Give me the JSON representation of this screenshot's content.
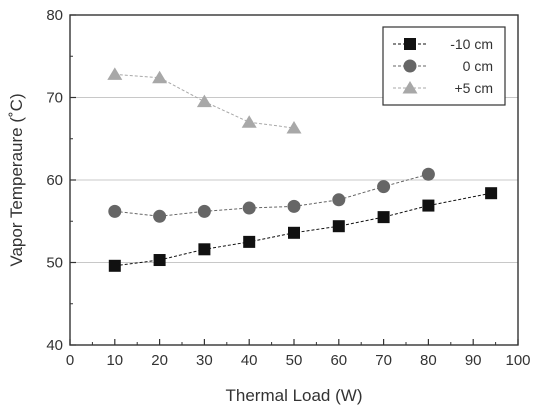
{
  "chart_data": {
    "type": "line",
    "xlabel": "Thermal Load (W)",
    "ylabel": "Vapor Temperaure (˚C)",
    "xlim": [
      0,
      100
    ],
    "ylim": [
      40,
      80
    ],
    "x_ticks": [
      0,
      10,
      20,
      30,
      40,
      50,
      60,
      70,
      80,
      90,
      100
    ],
    "y_ticks": [
      40,
      50,
      60,
      70,
      80
    ],
    "grid": "horizontal",
    "legend_position": "top-right",
    "series": [
      {
        "name": "-10 cm",
        "marker": "square",
        "color": "#111111",
        "points": [
          [
            10,
            49.6
          ],
          [
            20,
            50.3
          ],
          [
            30,
            51.6
          ],
          [
            40,
            52.5
          ],
          [
            50,
            53.6
          ],
          [
            60,
            54.4
          ],
          [
            70,
            55.5
          ],
          [
            80,
            56.9
          ],
          [
            94,
            58.4
          ]
        ]
      },
      {
        "name": "0 cm",
        "marker": "circle",
        "color": "#666666",
        "points": [
          [
            10,
            56.2
          ],
          [
            20,
            55.6
          ],
          [
            30,
            56.2
          ],
          [
            40,
            56.6
          ],
          [
            50,
            56.8
          ],
          [
            60,
            57.6
          ],
          [
            70,
            59.2
          ],
          [
            80,
            60.7
          ]
        ]
      },
      {
        "name": "+5 cm",
        "marker": "triangle",
        "color": "#a8a8a8",
        "points": [
          [
            10,
            72.8
          ],
          [
            20,
            72.4
          ],
          [
            30,
            69.5
          ],
          [
            40,
            67.0
          ],
          [
            50,
            66.3
          ]
        ]
      }
    ]
  }
}
